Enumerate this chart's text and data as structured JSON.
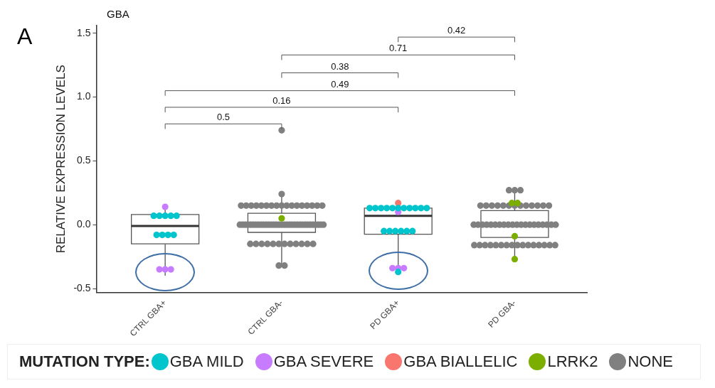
{
  "chart_data": {
    "type": "box",
    "title": "GBA",
    "ylabel": "RELATIVE EXPRESSION LEVELS",
    "legend_title": "MUTATION TYPE:",
    "legend": "bottom",
    "grid": false,
    "categories": [
      "CTRL GBA+",
      "CTRL GBA-",
      "PD GBA+",
      "PD GBA-"
    ],
    "ylim": [
      -0.53,
      1.56
    ],
    "yticks": [
      {
        "value": -0.5,
        "label": "-0.5"
      },
      {
        "value": 0,
        "label": "0.0"
      },
      {
        "value": 0.5,
        "label": "0.5"
      },
      {
        "value": 1,
        "label": "1.0"
      },
      {
        "value": 1.5,
        "label": "1.5"
      }
    ],
    "boxes": [
      {
        "low": -0.4,
        "q1": -0.15,
        "median": -0.01,
        "q3": 0.08,
        "high": 0.14
      },
      {
        "low": -0.32,
        "q1": -0.06,
        "median": 0.0,
        "q3": 0.09,
        "high": 0.24
      },
      {
        "low": -0.37,
        "q1": -0.075,
        "median": 0.07,
        "q3": 0.13,
        "high": 0.17
      },
      {
        "low": -0.27,
        "q1": -0.1,
        "median": 0.0,
        "q3": 0.11,
        "high": 0.27
      }
    ],
    "series": [
      {
        "name": "GBA MILD",
        "type": "scatter",
        "color": "#00c5cd",
        "x": [
          "CTRL GBA+",
          "CTRL GBA+",
          "CTRL GBA+",
          "CTRL GBA+",
          "CTRL GBA+",
          "CTRL GBA+",
          "CTRL GBA+",
          "CTRL GBA+",
          "CTRL GBA+",
          "PD GBA+",
          "PD GBA+",
          "PD GBA+",
          "PD GBA+",
          "PD GBA+",
          "PD GBA+",
          "PD GBA+",
          "PD GBA+",
          "PD GBA+",
          "PD GBA+",
          "PD GBA+",
          "PD GBA+",
          "PD GBA+",
          "PD GBA+",
          "PD GBA+",
          "PD GBA+",
          "PD GBA+",
          "PD GBA+"
        ],
        "values": [
          0.07,
          0.07,
          0.07,
          0.07,
          0.07,
          -0.08,
          -0.08,
          -0.08,
          -0.08,
          0.13,
          0.13,
          0.13,
          0.13,
          0.13,
          0.13,
          0.13,
          0.13,
          0.13,
          0.13,
          0.13,
          -0.05,
          -0.05,
          -0.05,
          -0.05,
          -0.05,
          -0.05,
          -0.37
        ]
      },
      {
        "name": "GBA SEVERE",
        "type": "scatter",
        "color": "#c77cff",
        "x": [
          "CTRL GBA+",
          "CTRL GBA+",
          "CTRL GBA+",
          "CTRL GBA+",
          "PD GBA+",
          "PD GBA+",
          "PD GBA+",
          "PD GBA+"
        ],
        "values": [
          0.14,
          -0.35,
          -0.35,
          -0.35,
          0.1,
          -0.34,
          -0.34,
          -0.34
        ]
      },
      {
        "name": "GBA BIALLELIC",
        "type": "scatter",
        "color": "#f8766d",
        "x": [
          "PD GBA+"
        ],
        "values": [
          0.17
        ]
      },
      {
        "name": "LRRK2",
        "type": "scatter",
        "color": "#7cae00",
        "x": [
          "CTRL GBA-",
          "PD GBA-",
          "PD GBA-",
          "PD GBA-",
          "PD GBA-"
        ],
        "values": [
          0.05,
          0.17,
          0.17,
          -0.09,
          -0.27
        ]
      },
      {
        "name": "NONE",
        "type": "scatter",
        "color": "#808080",
        "x": [
          "CTRL GBA-",
          "CTRL GBA-",
          "CTRL GBA-",
          "CTRL GBA-",
          "CTRL GBA-",
          "CTRL GBA-",
          "CTRL GBA-",
          "CTRL GBA-",
          "CTRL GBA-",
          "CTRL GBA-",
          "CTRL GBA-",
          "CTRL GBA-",
          "CTRL GBA-",
          "CTRL GBA-",
          "CTRL GBA-",
          "CTRL GBA-",
          "CTRL GBA-",
          "CTRL GBA-",
          "CTRL GBA-",
          "CTRL GBA-",
          "CTRL GBA-",
          "CTRL GBA-",
          "CTRL GBA-",
          "CTRL GBA-",
          "CTRL GBA-",
          "CTRL GBA-",
          "CTRL GBA-",
          "CTRL GBA-",
          "CTRL GBA-",
          "CTRL GBA-",
          "CTRL GBA-",
          "CTRL GBA-",
          "CTRL GBA-",
          "CTRL GBA-",
          "CTRL GBA-",
          "CTRL GBA-",
          "CTRL GBA-",
          "CTRL GBA-",
          "CTRL GBA-",
          "CTRL GBA-",
          "CTRL GBA-",
          "CTRL GBA-",
          "CTRL GBA-",
          "CTRL GBA-",
          "CTRL GBA-",
          "CTRL GBA-",
          "CTRL GBA-",
          "CTRL GBA-",
          "CTRL GBA-",
          "CTRL GBA-",
          "CTRL GBA-",
          "CTRL GBA-",
          "CTRL GBA-",
          "CTRL GBA-",
          "CTRL GBA-",
          "CTRL GBA-",
          "CTRL GBA-",
          "CTRL GBA-",
          "CTRL GBA-",
          "CTRL GBA-",
          "CTRL GBA-",
          "CTRL GBA-",
          "CTRL GBA-",
          "CTRL GBA-",
          "CTRL GBA-",
          "CTRL GBA-",
          "PD GBA-",
          "PD GBA-",
          "PD GBA-",
          "PD GBA-",
          "PD GBA-",
          "PD GBA-",
          "PD GBA-",
          "PD GBA-",
          "PD GBA-",
          "PD GBA-",
          "PD GBA-",
          "PD GBA-",
          "PD GBA-",
          "PD GBA-",
          "PD GBA-",
          "PD GBA-",
          "PD GBA-",
          "PD GBA-",
          "PD GBA-",
          "PD GBA-",
          "PD GBA-",
          "PD GBA-",
          "PD GBA-",
          "PD GBA-",
          "PD GBA-",
          "PD GBA-",
          "PD GBA-",
          "PD GBA-",
          "PD GBA-",
          "PD GBA-",
          "PD GBA-",
          "PD GBA-",
          "PD GBA-",
          "PD GBA-",
          "PD GBA-",
          "PD GBA-",
          "PD GBA-",
          "PD GBA-",
          "PD GBA-",
          "PD GBA-",
          "PD GBA-",
          "PD GBA-",
          "PD GBA-",
          "PD GBA-",
          "PD GBA-",
          "PD GBA-",
          "PD GBA-",
          "PD GBA-",
          "PD GBA-",
          "PD GBA-",
          "PD GBA-",
          "PD GBA-"
        ],
        "values": [
          0.74,
          0.24,
          0.15,
          0.15,
          0.15,
          0.15,
          0.15,
          0.15,
          0.15,
          0.15,
          0.15,
          0.15,
          0.15,
          0.15,
          0.15,
          0.15,
          0.15,
          0.15,
          0.15,
          0,
          0,
          0,
          0,
          0,
          0,
          0,
          0,
          0,
          0,
          0,
          0,
          0,
          0,
          0,
          0,
          0,
          0,
          0,
          0,
          0,
          0,
          0,
          0,
          0,
          0,
          0,
          0,
          0,
          0,
          0,
          0,
          0,
          -0.15,
          -0.15,
          -0.15,
          -0.15,
          -0.15,
          -0.15,
          -0.15,
          -0.15,
          -0.15,
          -0.15,
          -0.15,
          -0.15,
          -0.32,
          -0.32,
          0.27,
          0.27,
          0.27,
          0.15,
          0.15,
          0.15,
          0.15,
          0.15,
          0.15,
          0.15,
          0.15,
          0.15,
          0.15,
          0.15,
          0.15,
          0.15,
          0,
          0,
          0,
          0,
          0,
          0,
          0,
          0,
          0,
          0,
          0,
          0,
          0,
          0,
          0,
          0,
          0,
          0,
          0,
          0,
          -0.16,
          -0.16,
          -0.16,
          -0.16,
          -0.16,
          -0.16,
          -0.16,
          -0.16,
          -0.16,
          -0.16,
          -0.16,
          -0.16,
          -0.16,
          -0.16,
          -0.16,
          -0.16
        ]
      }
    ],
    "annotations": [
      "A",
      "0.42",
      "0.71",
      "0.38",
      "0.49",
      "0.16",
      "0.5"
    ]
  }
}
